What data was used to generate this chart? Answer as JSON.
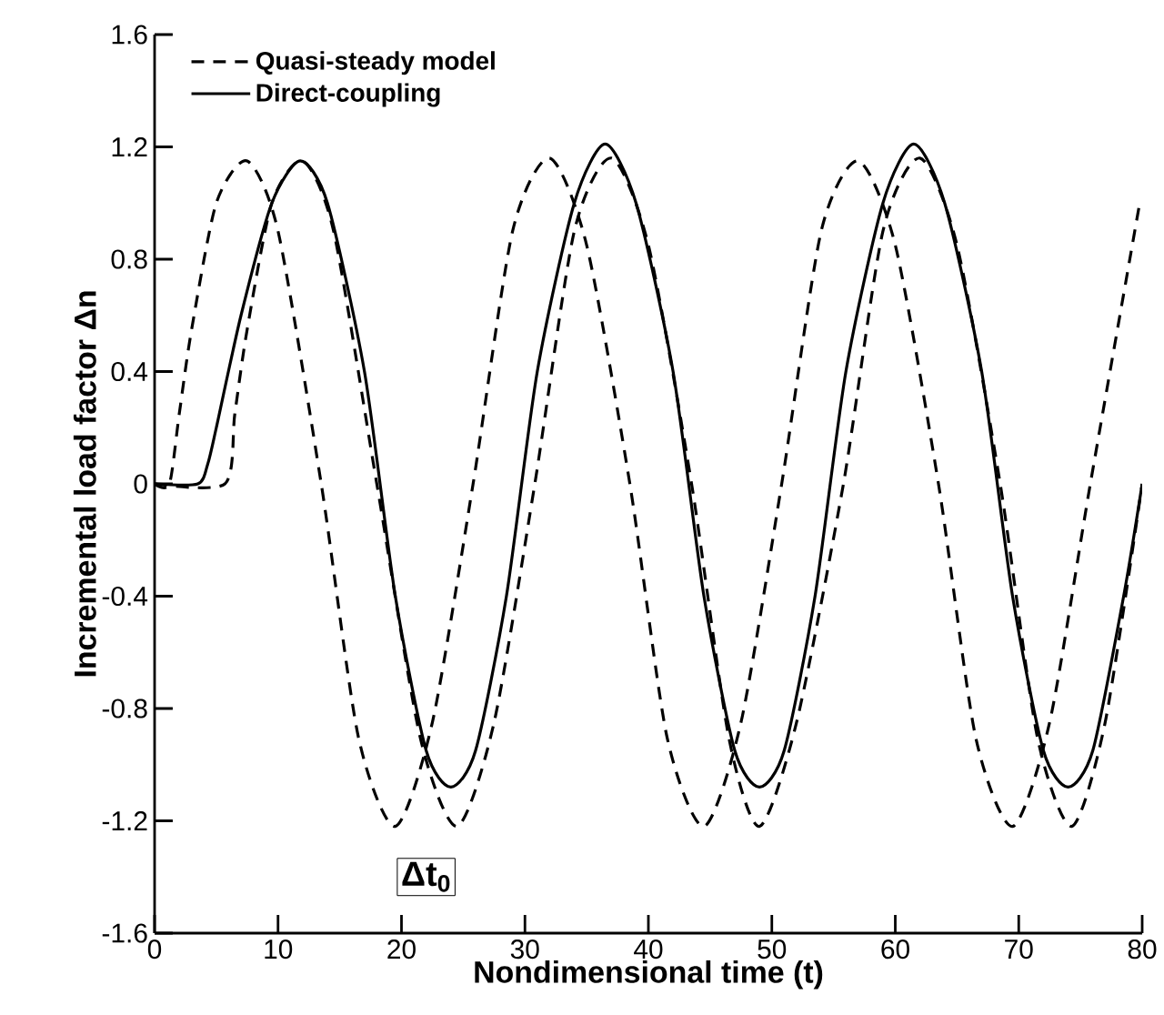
{
  "chart_data": {
    "type": "line",
    "xlabel": "Nondimensional time (t)",
    "ylabel": "Incremental load factor Δn",
    "xlim": [
      0,
      80
    ],
    "xticks": [
      0,
      10,
      20,
      30,
      40,
      50,
      60,
      70,
      80
    ],
    "ylim": [
      -1.6,
      1.6
    ],
    "yticks": [
      -1.6,
      -1.2,
      -0.8,
      -0.4,
      0,
      0.4,
      0.8,
      1.2,
      1.6
    ],
    "grid": false,
    "legend": "top left",
    "annotations": [
      {
        "text": "Δt$_{0}$",
        "x": 22,
        "y": -1.4
      }
    ],
    "series": [
      {
        "name": "Quasi-steady model",
        "color": "#000000",
        "line_style": "dashed",
        "x": [
          0,
          1.2,
          2,
          3,
          5,
          7.5,
          10,
          13.5,
          16.5,
          19.5,
          22.5,
          25.8,
          29,
          32,
          35,
          38.5,
          41.5,
          44.5,
          47.5,
          50.8,
          54,
          57,
          60,
          63.5,
          66.5,
          69.5,
          72.5,
          75.8,
          79.8
        ],
        "values": [
          0,
          0,
          0.25,
          0.55,
          1.0,
          1.15,
          0.9,
          0,
          -0.9,
          -1.22,
          -0.85,
          0,
          0.9,
          1.16,
          0.85,
          0,
          -0.9,
          -1.22,
          -0.85,
          0,
          0.9,
          1.15,
          0.85,
          0,
          -0.9,
          -1.22,
          -0.85,
          0,
          1.0
        ]
      },
      {
        "name": "Direct-coupling",
        "color": "#000000",
        "line_style": "solid",
        "x": [
          0,
          3.5,
          4.3,
          5,
          7,
          9.5,
          11.8,
          14,
          17,
          19.5,
          22,
          24,
          26,
          28.5,
          31,
          34,
          36.5,
          39,
          42,
          44.5,
          47,
          49,
          51,
          53.5,
          56,
          59,
          61.5,
          64,
          67,
          69.5,
          72,
          74,
          76,
          78.5,
          80
        ],
        "values": [
          0,
          0,
          0.07,
          0.2,
          0.6,
          1.0,
          1.15,
          1.0,
          0.4,
          -0.4,
          -0.95,
          -1.08,
          -0.95,
          -0.4,
          0.4,
          1.0,
          1.21,
          1.0,
          0.4,
          -0.4,
          -0.95,
          -1.08,
          -0.95,
          -0.4,
          0.4,
          1.0,
          1.21,
          1.0,
          0.4,
          -0.4,
          -0.95,
          -1.08,
          -0.95,
          -0.4,
          0
        ]
      },
      {
        "color": "#000000",
        "line_style": "dashed",
        "x": [
          0,
          5.7,
          6.5,
          7.5,
          9.5,
          12,
          14.5,
          18,
          21.5,
          24.5,
          27.5,
          30.8,
          34,
          37,
          40,
          43.5,
          46.5,
          49,
          52,
          55.8,
          59,
          62,
          65,
          68.5,
          71.5,
          74.3,
          77,
          80
        ],
        "values": [
          0,
          0,
          0.25,
          0.55,
          1.0,
          1.15,
          0.9,
          0,
          -0.9,
          -1.22,
          -0.85,
          0,
          0.9,
          1.16,
          0.85,
          0,
          -0.9,
          -1.22,
          -0.85,
          0,
          0.9,
          1.16,
          0.85,
          0,
          -0.9,
          -1.22,
          -0.85,
          0
        ]
      }
    ]
  }
}
